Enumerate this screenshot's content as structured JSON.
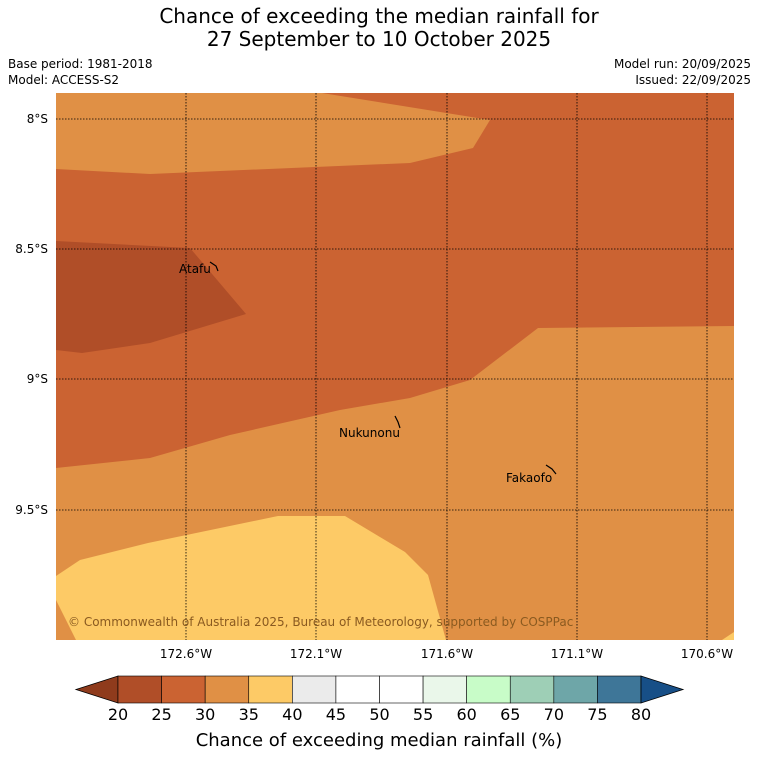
{
  "header": {
    "title_line1": "Chance of exceeding the median rainfall for",
    "title_line2": "27 September to 10 October 2025",
    "base_period": "Base period: 1981-2018",
    "model": "Model: ACCESS-S2",
    "model_run": "Model run: 20/09/2025",
    "issued": "Issued: 22/09/2025"
  },
  "map": {
    "latitude_labels": [
      "8°S",
      "8.5°S",
      "9°S",
      "9.5°S"
    ],
    "longitude_labels": [
      "172.6°W",
      "172.1°W",
      "171.6°W",
      "171.1°W",
      "170.6°W"
    ],
    "places": [
      "Atafu",
      "Nukunonu",
      "Fakaofo"
    ],
    "copyright": "© Commonwealth of Australia 2025, Bureau of Meteorology, supported by COSPPac",
    "zone_colors": {
      "20-25": "#b04e28",
      "25-30": "#cb6332",
      "30-35": "#e09045",
      "35-40": "#fdca66"
    }
  },
  "colorbar": {
    "ticks": [
      "20",
      "25",
      "30",
      "35",
      "40",
      "45",
      "50",
      "55",
      "60",
      "65",
      "70",
      "75",
      "80"
    ],
    "colors": [
      "#b04e28",
      "#cb6332",
      "#e09045",
      "#fdca66",
      "#ebebeb",
      "#ffffff",
      "#ffffff",
      "#eaf7ea",
      "#c8fcc8",
      "#9ecfb6",
      "#6ea6a8",
      "#3e7698"
    ],
    "under_color": "#8f3b1c",
    "over_color": "#174f87",
    "label": "Chance of exceeding median rainfall (%)"
  }
}
